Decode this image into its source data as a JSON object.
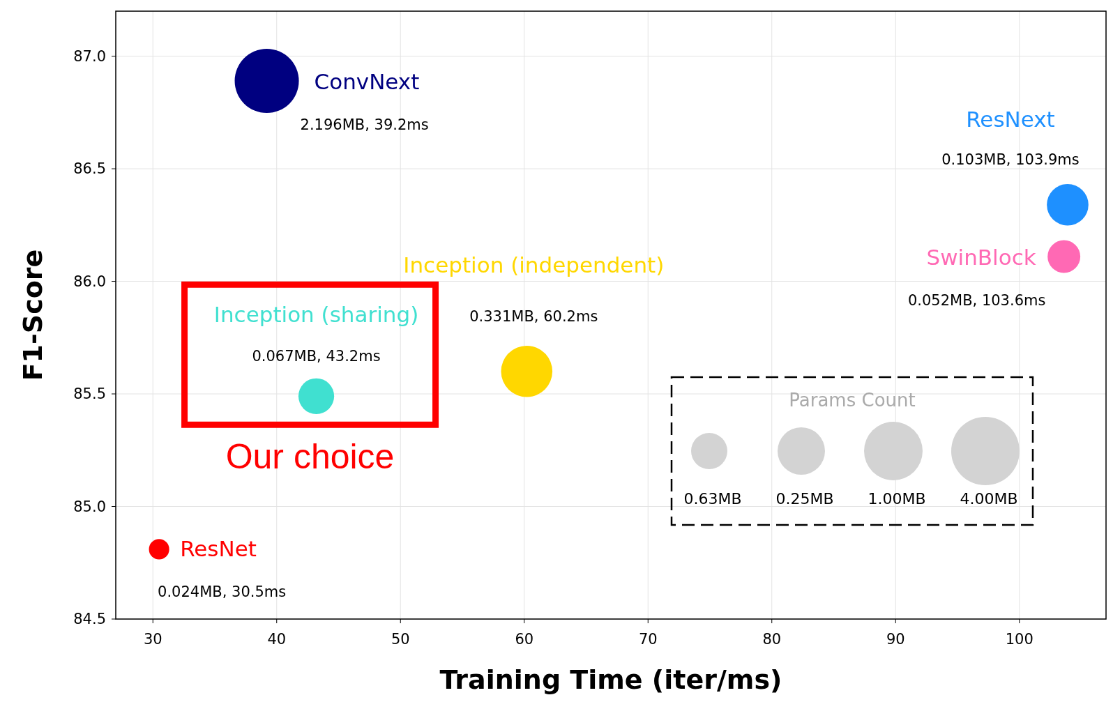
{
  "chart_data": {
    "type": "bubble",
    "xlabel": "Training Time (iter/ms)",
    "ylabel": "F1-Score",
    "xlim": [
      27,
      107
    ],
    "ylim": [
      84.5,
      87.2
    ],
    "xticks": [
      30,
      40,
      50,
      60,
      70,
      80,
      90,
      100
    ],
    "yticks": [
      84.5,
      {
        "value": 85,
        "label": "85.0"
      },
      85.5,
      {
        "value": 86,
        "label": "86.0"
      },
      86.5,
      {
        "value": 87,
        "label": "87.0"
      }
    ],
    "grid": true,
    "legend_title": "Params Count",
    "series": [
      {
        "name": "ConvNext",
        "color": "#000080",
        "x": [
          39.2
        ],
        "values": [
          86.89
        ],
        "sizes": [
          1
        ],
        "value_labels": [
          "2.196MB, 39.2ms"
        ]
      },
      {
        "name": "ResNext",
        "color": "#1e90ff",
        "x": [
          103.9
        ],
        "values": [
          86.34
        ],
        "sizes": [
          0.42
        ],
        "value_labels": [
          "0.103MB, 103.9ms"
        ]
      },
      {
        "name": "SwinBlock",
        "color": "#ff69b4",
        "x": [
          103.6
        ],
        "values": [
          86.11
        ],
        "sizes": [
          0.26
        ],
        "value_labels": [
          "0.052MB, 103.6ms"
        ]
      },
      {
        "name": "Inception (independent)",
        "color": "#ffd700",
        "x": [
          60.2
        ],
        "values": [
          85.6
        ],
        "sizes": [
          0.64
        ],
        "value_labels": [
          "0.331MB, 60.2ms"
        ]
      },
      {
        "name": "Inception (sharing)",
        "color": "#40e0d0",
        "x": [
          43.2
        ],
        "values": [
          85.49
        ],
        "sizes": [
          0.31
        ],
        "value_labels": [
          "0.067MB, 43.2ms"
        ]
      },
      {
        "name": "ResNet",
        "color": "#ff0000",
        "x": [
          30.5
        ],
        "values": [
          84.81
        ],
        "sizes": [
          0.1
        ],
        "value_labels": [
          "0.024MB, 30.5ms"
        ]
      }
    ],
    "annotations": [
      {
        "text": "Our choice",
        "x": 43.2,
        "y": 85.49
      },
      "0.63MB",
      "0.25MB",
      "1.00MB",
      "4.00MB"
    ]
  }
}
